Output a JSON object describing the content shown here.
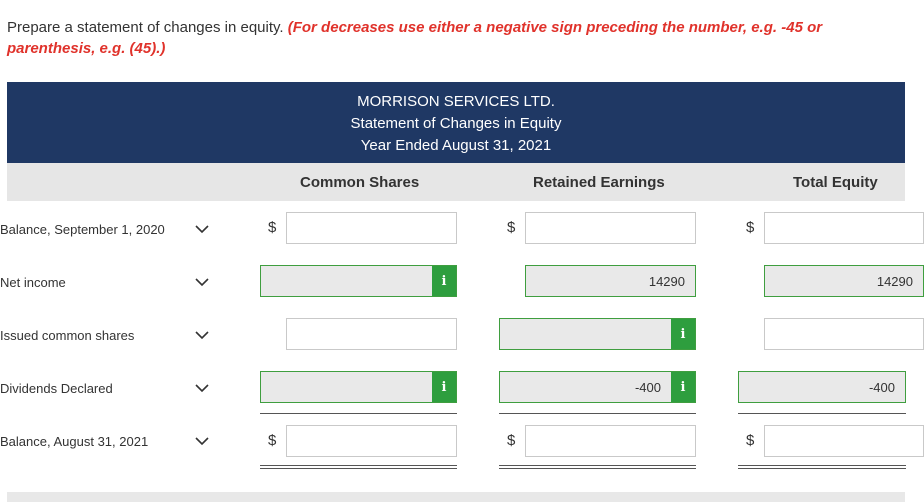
{
  "instructions": {
    "text": "Prepare a statement of changes in equity. ",
    "hint": "(For decreases use either a negative sign preceding the number, e.g. -45 or parenthesis, e.g. (45).)"
  },
  "statement": {
    "company": "MORRISON SERVICES LTD.",
    "title": "Statement of Changes in Equity",
    "period": "Year Ended August 31, 2021"
  },
  "columns": {
    "common": "Common Shares",
    "retained": "Retained Earnings",
    "total": "Total Equity"
  },
  "currency_symbol": "$",
  "rows": [
    {
      "label": "Balance, September 1, 2020",
      "common": "",
      "retained": "",
      "total": ""
    },
    {
      "label": "Net income",
      "common": "",
      "retained": "14290",
      "total": "14290"
    },
    {
      "label": "Issued common shares",
      "common": "",
      "retained": "",
      "total": ""
    },
    {
      "label": "Dividends Declared",
      "common": "",
      "retained": "-400",
      "total": "-400"
    },
    {
      "label": "Balance, August 31, 2021",
      "common": "",
      "retained": "",
      "total": ""
    }
  ],
  "info_icon_glyph": "i",
  "icons": {
    "dropdown": "chevron-down-icon",
    "info": "info-icon"
  },
  "colors": {
    "header": "#1f3864",
    "hint": "#e0322b",
    "info": "#2e9e3e"
  }
}
